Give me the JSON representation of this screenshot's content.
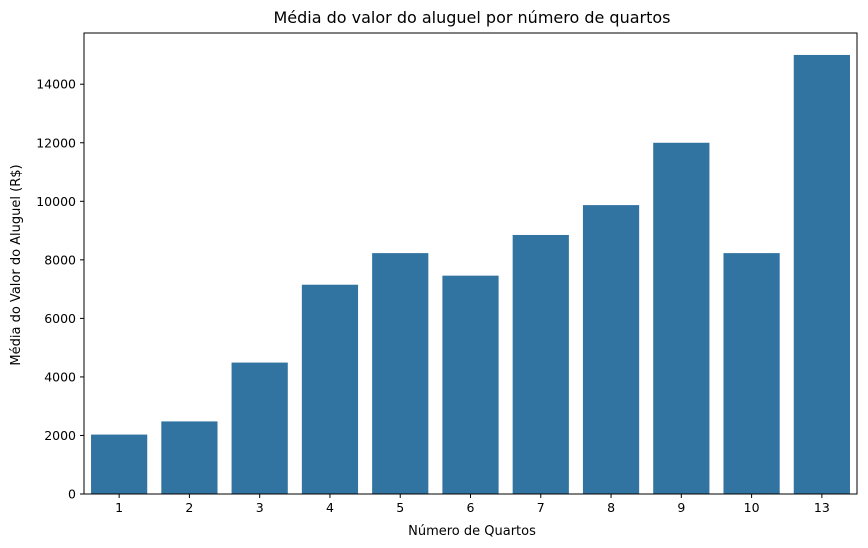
{
  "chart_data": {
    "type": "bar",
    "title": "Média do valor do aluguel por número de quartos",
    "xlabel": "Número de Quartos",
    "ylabel": "Média do Valor do Aluguel (R$)",
    "categories": [
      "1",
      "2",
      "3",
      "4",
      "5",
      "6",
      "7",
      "8",
      "9",
      "10",
      "13"
    ],
    "values": [
      2030,
      2480,
      4490,
      7150,
      8230,
      7460,
      8850,
      9870,
      12000,
      8230,
      15000
    ],
    "ylim": [
      0,
      15750
    ],
    "yticks": [
      0,
      2000,
      4000,
      6000,
      8000,
      10000,
      12000,
      14000
    ],
    "grid": false,
    "legend": "none",
    "bar_color": "#3274a1"
  }
}
